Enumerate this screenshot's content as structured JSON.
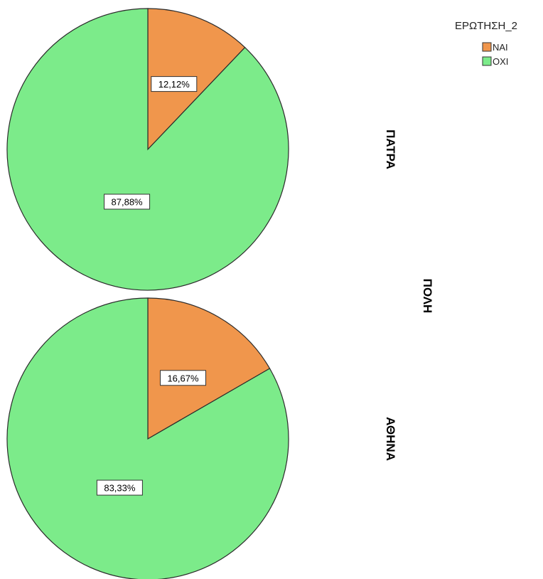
{
  "chart_data": {
    "type": "pie",
    "legend": {
      "title": "ΕΡΩΤΗΣΗ_2",
      "placement": "top-right",
      "entries": [
        {
          "label": "ΝΑΙ",
          "color": "#F0964C"
        },
        {
          "label": "ΟΧΙ",
          "color": "#7CEB8A"
        }
      ]
    },
    "panel_axis_label": "ΠΟΛΗ",
    "panels": [
      {
        "name": "ΠΑΤΡΑ",
        "slices": [
          {
            "category": "ΝΑΙ",
            "value": 12.12,
            "label": "12,12%"
          },
          {
            "category": "ΟΧΙ",
            "value": 87.88,
            "label": "87,88%"
          }
        ]
      },
      {
        "name": "ΑΘΗΝΑ",
        "slices": [
          {
            "category": "ΝΑΙ",
            "value": 16.67,
            "label": "16,67%"
          },
          {
            "category": "ΟΧΙ",
            "value": 83.33,
            "label": "83,33%"
          }
        ]
      }
    ]
  }
}
